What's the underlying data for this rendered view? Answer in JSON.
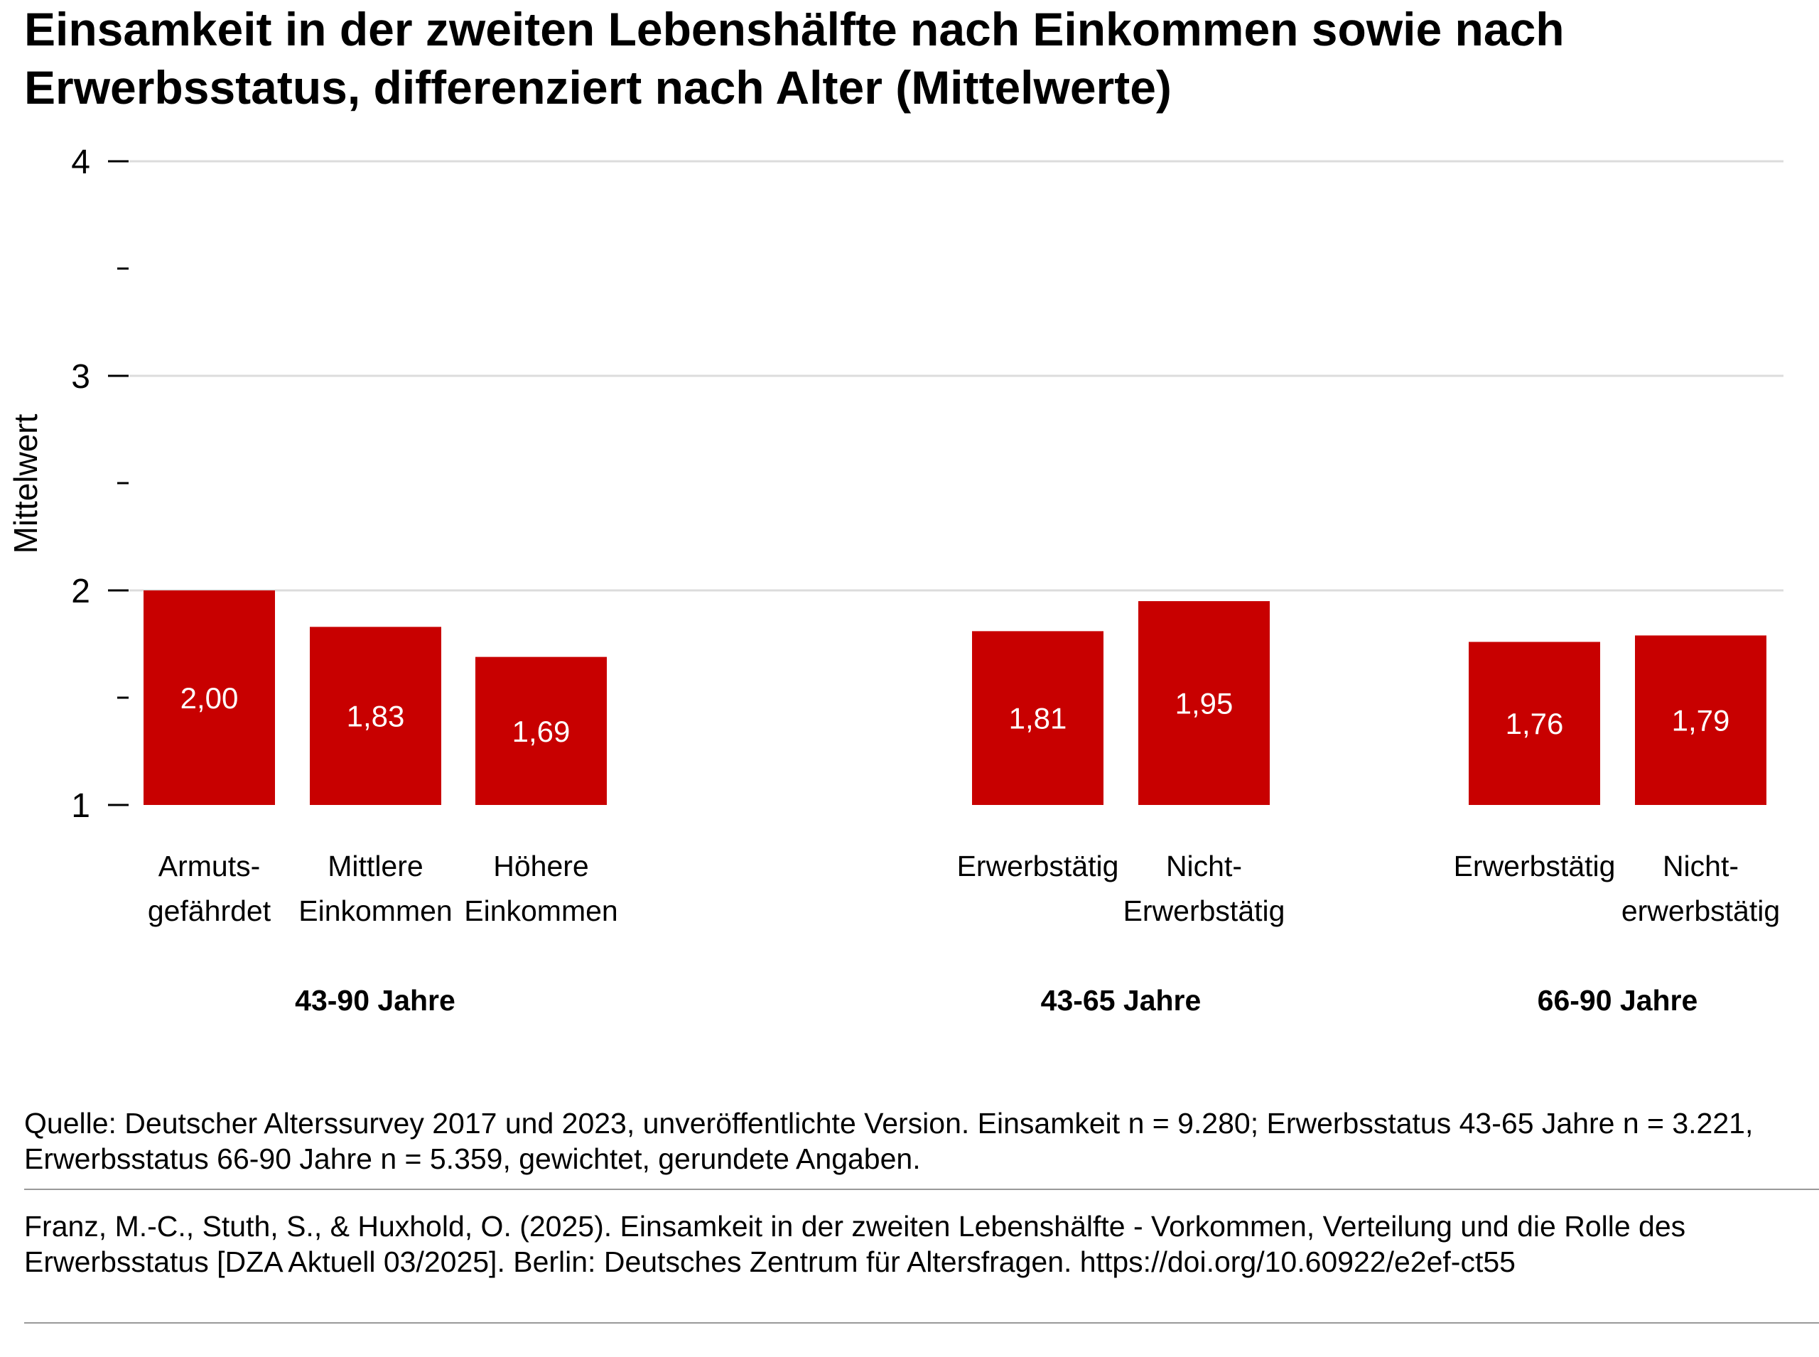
{
  "title": "Einsamkeit in der zweiten Lebenshälfte nach Einkommen sowie nach Erwerbsstatus, differenziert nach Alter (Mittelwerte)",
  "chart_data": {
    "type": "bar",
    "ylabel": "Mittelwert",
    "ylim": [
      1,
      4
    ],
    "yticks": [
      "1",
      "2",
      "3",
      "4"
    ],
    "minor_ticks": [
      1.5,
      2.5,
      3.5
    ],
    "grid": true,
    "bar_color": "#c80000",
    "groups": [
      {
        "label": "43-90 Jahre",
        "bars": [
          {
            "category": [
              "Armuts-",
              "gefährdet"
            ],
            "value": 2.0,
            "label": "2,00"
          },
          {
            "category": [
              "Mittlere",
              "Einkommen"
            ],
            "value": 1.83,
            "label": "1,83"
          },
          {
            "category": [
              "Höhere",
              "Einkommen"
            ],
            "value": 1.69,
            "label": "1,69"
          }
        ]
      },
      {
        "label": "43-65 Jahre",
        "bars": [
          {
            "category": [
              "Erwerbstätig"
            ],
            "value": 1.81,
            "label": "1,81"
          },
          {
            "category": [
              "Nicht-",
              "Erwerbstätig"
            ],
            "value": 1.95,
            "label": "1,95"
          }
        ]
      },
      {
        "label": "66-90 Jahre",
        "bars": [
          {
            "category": [
              "Erwerbstätig"
            ],
            "value": 1.76,
            "label": "1,76"
          },
          {
            "category": [
              "Nicht-",
              "erwerbstätig"
            ],
            "value": 1.79,
            "label": "1,79"
          }
        ]
      }
    ]
  },
  "source": "Quelle: Deutscher Alterssurvey 2017 und 2023, unveröffentlichte Version. Einsamkeit n = 9.280; Erwerbsstatus 43-65 Jahre n = 3.221,  Erwerbsstatus 66-90 Jahre n = 5.359, gewichtet, gerundete Angaben.",
  "citation": "Franz, M.-C., Stuth, S., & Huxhold, O. (2025). Einsamkeit in der zweiten Lebenshälfte - Vorkommen, Verteilung und die Rolle des Erwerbsstatus [DZA Aktuell 03/2025]. Berlin: Deutsches Zentrum für Altersfragen. https://doi.org/10.60922/e2ef-ct55"
}
